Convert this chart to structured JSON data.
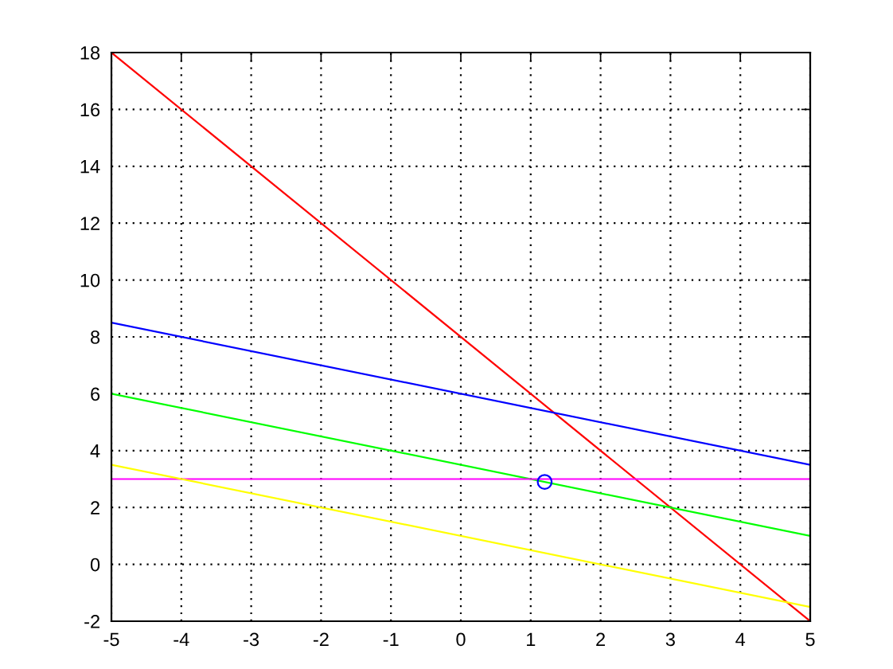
{
  "chart_data": {
    "type": "line",
    "x": [
      -5,
      5
    ],
    "series": [
      {
        "color": "#ff0000",
        "values": [
          18,
          -2
        ]
      },
      {
        "color": "#0000ff",
        "values": [
          8.5,
          3.5
        ]
      },
      {
        "color": "#00ff00",
        "values": [
          6,
          1
        ]
      },
      {
        "color": "#ff00ff",
        "values": [
          3,
          3
        ]
      },
      {
        "color": "#ffff00",
        "values": [
          3.5,
          -1.5
        ]
      },
      {
        "type": "scatter",
        "x": [
          1.2
        ],
        "values": [
          2.9
        ],
        "color": "#0000ff",
        "marker": "circle"
      }
    ],
    "xlim": [
      -5,
      5
    ],
    "ylim": [
      -2,
      18
    ],
    "xticks": [
      -5,
      -4,
      -3,
      -2,
      -1,
      0,
      1,
      2,
      3,
      4,
      5
    ],
    "yticks": [
      -2,
      0,
      2,
      4,
      6,
      8,
      10,
      12,
      14,
      16,
      18
    ],
    "grid": true
  }
}
